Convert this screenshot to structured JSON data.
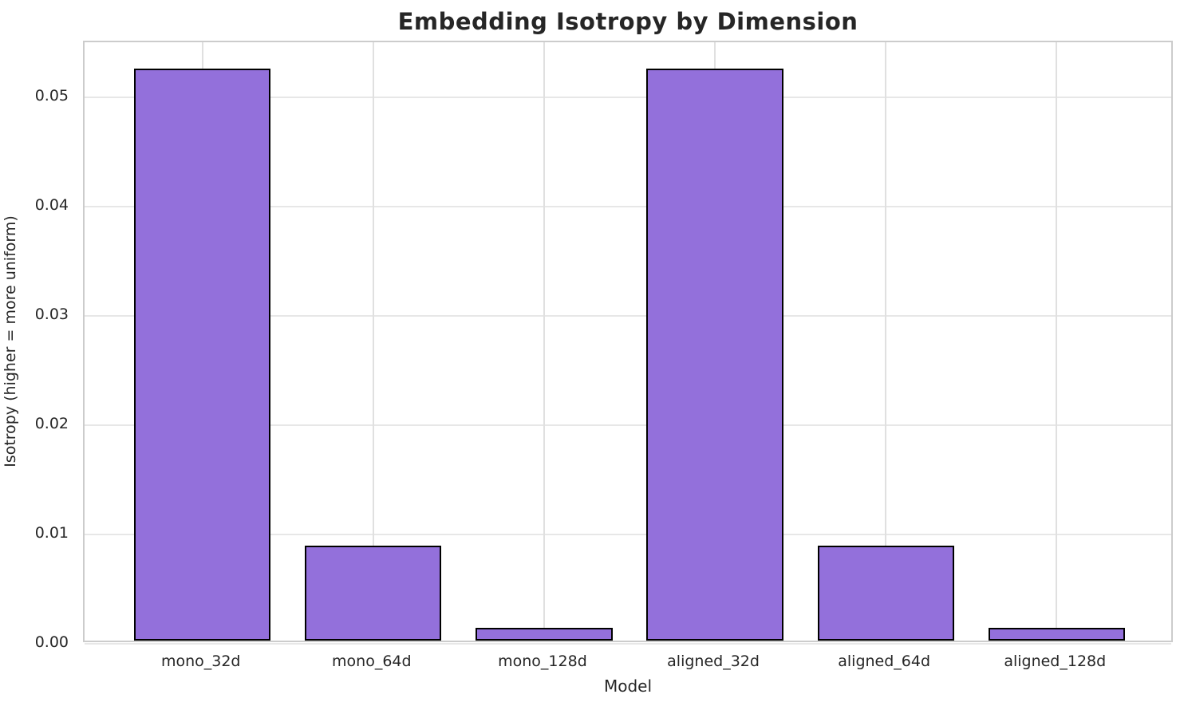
{
  "chart_data": {
    "type": "bar",
    "title": "Embedding Isotropy by Dimension",
    "xlabel": "Model",
    "ylabel": "Isotropy (higher = more uniform)",
    "categories": [
      "mono_32d",
      "mono_64d",
      "mono_128d",
      "aligned_32d",
      "aligned_64d",
      "aligned_128d"
    ],
    "values": [
      0.0523,
      0.0087,
      0.0012,
      0.0523,
      0.0087,
      0.0012
    ],
    "ylim": [
      0,
      0.055
    ],
    "yticks": [
      0.0,
      0.01,
      0.02,
      0.03,
      0.04,
      0.05
    ],
    "ytick_labels": [
      "0.00",
      "0.01",
      "0.02",
      "0.03",
      "0.04",
      "0.05"
    ],
    "grid": "both",
    "legend": "none",
    "bar_color": "#9370DB",
    "bar_edge_color": "#000000",
    "text_color": "#262626",
    "grid_color": "#e7e7e7",
    "spine_color": "#cccccc",
    "background_color": "#ffffff"
  }
}
